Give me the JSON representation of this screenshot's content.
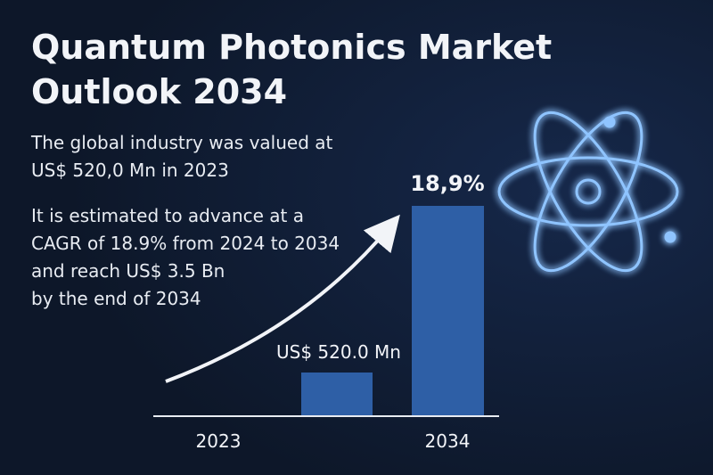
{
  "header": {
    "title_lines": [
      "Quantum Photonics Market",
      "Outlook 2034"
    ]
  },
  "intro": {
    "lines": [
      "The global industry was valued at",
      "US$ 520,0 Mn in 2023"
    ]
  },
  "forecast": {
    "lines": [
      "It is estimated to advance at a",
      "CAGR of 18.9% from 2024 to 2034",
      "and reach US$ 3.5 Bn",
      "by the end of 2034"
    ]
  },
  "bars": [
    {
      "year": "2023",
      "label": "US$ 520.0 Mn"
    },
    {
      "year": "2034",
      "label": "18,9%"
    }
  ]
}
